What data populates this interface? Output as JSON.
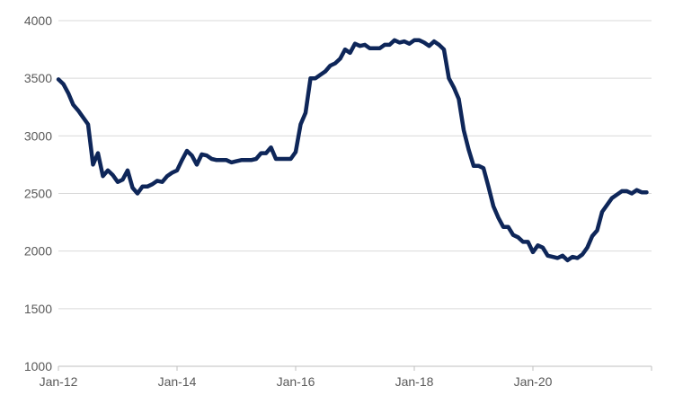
{
  "chart_data": {
    "type": "line",
    "title": "",
    "xlabel": "",
    "ylabel": "",
    "ylim": [
      1000,
      4000
    ],
    "yticks": [
      1000,
      1500,
      2000,
      2500,
      3000,
      3500,
      4000
    ],
    "xticks": [
      "Jan-12",
      "Jan-14",
      "Jan-16",
      "Jan-18",
      "Jan-20"
    ],
    "x_range": [
      "Jan-12",
      "Dec-21"
    ],
    "grid": "horizontal",
    "legend": "none",
    "colors": {
      "series": "#0e2659",
      "grid": "#d9d9d9",
      "axis": "#bfbfbf",
      "text": "#595959"
    },
    "series": [
      {
        "x": [
          "Jan-12",
          "Feb-12",
          "Mar-12",
          "Apr-12",
          "May-12",
          "Jun-12",
          "Jul-12",
          "Aug-12",
          "Sep-12",
          "Oct-12",
          "Nov-12",
          "Dec-12",
          "Jan-13",
          "Feb-13",
          "Mar-13",
          "Apr-13",
          "May-13",
          "Jun-13",
          "Jul-13",
          "Aug-13",
          "Sep-13",
          "Oct-13",
          "Nov-13",
          "Dec-13",
          "Jan-14",
          "Feb-14",
          "Mar-14",
          "Apr-14",
          "May-14",
          "Jun-14",
          "Jul-14",
          "Aug-14",
          "Sep-14",
          "Oct-14",
          "Nov-14",
          "Dec-14",
          "Jan-15",
          "Feb-15",
          "Mar-15",
          "Apr-15",
          "May-15",
          "Jun-15",
          "Jul-15",
          "Aug-15",
          "Sep-15",
          "Oct-15",
          "Nov-15",
          "Dec-15",
          "Jan-16",
          "Feb-16",
          "Mar-16",
          "Apr-16",
          "May-16",
          "Jun-16",
          "Jul-16",
          "Aug-16",
          "Sep-16",
          "Oct-16",
          "Nov-16",
          "Dec-16",
          "Jan-17",
          "Feb-17",
          "Mar-17",
          "Apr-17",
          "May-17",
          "Jun-17",
          "Jul-17",
          "Aug-17",
          "Sep-17",
          "Oct-17",
          "Nov-17",
          "Dec-17",
          "Jan-18",
          "Feb-18",
          "Mar-18",
          "Apr-18",
          "May-18",
          "Jun-18",
          "Jul-18",
          "Aug-18",
          "Sep-18",
          "Oct-18",
          "Nov-18",
          "Dec-18",
          "Jan-19",
          "Feb-19",
          "Mar-19",
          "Apr-19",
          "May-19",
          "Jun-19",
          "Jul-19",
          "Aug-19",
          "Sep-19",
          "Oct-19",
          "Nov-19",
          "Dec-19",
          "Jan-20",
          "Feb-20",
          "Mar-20",
          "Apr-20",
          "May-20",
          "Jun-20",
          "Jul-20",
          "Aug-20",
          "Sep-20",
          "Oct-20",
          "Nov-20",
          "Dec-20",
          "Jan-21",
          "Feb-21",
          "Mar-21",
          "Apr-21",
          "May-21",
          "Jun-21",
          "Jul-21",
          "Aug-21",
          "Sep-21",
          "Oct-21",
          "Nov-21",
          "Dec-21"
        ],
        "values": [
          3490,
          3450,
          3370,
          3270,
          3220,
          3160,
          3100,
          2750,
          2850,
          2650,
          2700,
          2660,
          2600,
          2620,
          2700,
          2550,
          2500,
          2560,
          2560,
          2580,
          2610,
          2600,
          2650,
          2680,
          2700,
          2790,
          2870,
          2830,
          2750,
          2840,
          2830,
          2800,
          2790,
          2790,
          2790,
          2770,
          2780,
          2790,
          2790,
          2790,
          2800,
          2850,
          2850,
          2900,
          2800,
          2800,
          2800,
          2800,
          2860,
          3100,
          3200,
          3500,
          3500,
          3530,
          3560,
          3610,
          3630,
          3670,
          3750,
          3720,
          3800,
          3780,
          3790,
          3760,
          3760,
          3760,
          3790,
          3790,
          3830,
          3810,
          3820,
          3800,
          3830,
          3830,
          3810,
          3780,
          3820,
          3790,
          3750,
          3500,
          3420,
          3320,
          3050,
          2880,
          2740,
          2740,
          2720,
          2560,
          2390,
          2290,
          2210,
          2210,
          2140,
          2120,
          2080,
          2080,
          1990,
          2050,
          2030,
          1960,
          1950,
          1940,
          1960,
          1920,
          1950,
          1940,
          1970,
          2030,
          2130,
          2180,
          2340,
          2400,
          2460,
          2490,
          2520,
          2520,
          2500,
          2530,
          2510,
          2510
        ]
      }
    ]
  }
}
